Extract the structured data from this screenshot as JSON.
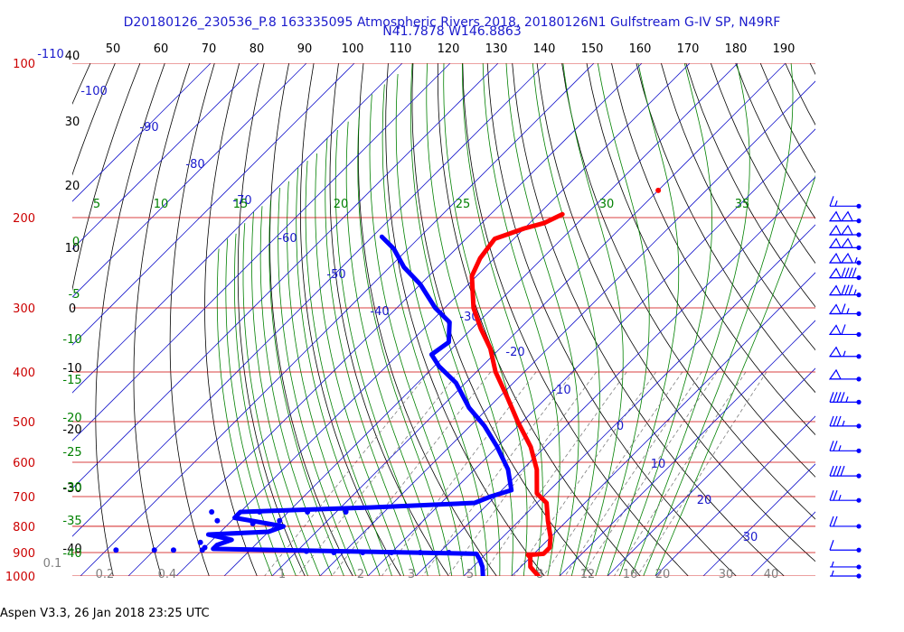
{
  "chart_data": {
    "type": "skew-t log-p",
    "title": "D20180126_230536_P.8 163335095 Atmospheric Rivers 2018, 20180126N1 Gulfstream G-IV SP, N49RF",
    "subtitle": "N41.7878 W146.8863",
    "footer": "Aspen V3.3, 26 Jan 2018  23:25 UTC",
    "pressure_levels": [
      "100",
      "200",
      "300",
      "400",
      "500",
      "600",
      "700",
      "800",
      "900",
      "1000"
    ],
    "height_labels": [
      "40",
      "30",
      "20",
      "10",
      "0",
      "-10",
      "-20",
      "-30",
      "-40"
    ],
    "top_temperature_labels": [
      "50",
      "60",
      "70",
      "80",
      "90",
      "100",
      "110",
      "120",
      "130",
      "140",
      "150",
      "160",
      "170",
      "180",
      "190"
    ],
    "isotherm_labels": [
      "-110",
      "-100",
      "-90",
      "-80",
      "-70",
      "-60",
      "-50",
      "-40",
      "-30",
      "-20",
      "-10",
      "0",
      "10",
      "20",
      "30"
    ],
    "moist_adiabat_labels": [
      "5",
      "10",
      "15",
      "20",
      "25",
      "30",
      "35"
    ],
    "dry_adiabat_labels": [
      "0",
      "-5",
      "-10",
      "-15",
      "-20",
      "-25",
      "-30",
      "-35",
      "-40"
    ],
    "mixing_ratio_labels": [
      "0.1",
      "0.2",
      "0.4",
      "1",
      "2",
      "3",
      "5",
      "8",
      "12",
      "16",
      "20",
      "30",
      "40"
    ],
    "colors": {
      "temperature": "#ff0000",
      "dewpoint": "#0000ff",
      "isobar": "#cc0000",
      "isotherm": "#1a1acc",
      "dry_adiabat": "#000000",
      "moist_adiabat": "#008000",
      "mixing_ratio": "#7f7f7f"
    },
    "temperature_profile": [
      {
        "p": 197,
        "t": -55
      },
      {
        "p": 205,
        "t": -57
      },
      {
        "p": 210,
        "t": -60
      },
      {
        "p": 220,
        "t": -64
      },
      {
        "p": 240,
        "t": -63
      },
      {
        "p": 260,
        "t": -61
      },
      {
        "p": 300,
        "t": -54
      },
      {
        "p": 330,
        "t": -48
      },
      {
        "p": 360,
        "t": -42
      },
      {
        "p": 400,
        "t": -36
      },
      {
        "p": 450,
        "t": -28
      },
      {
        "p": 500,
        "t": -21
      },
      {
        "p": 560,
        "t": -13
      },
      {
        "p": 620,
        "t": -7
      },
      {
        "p": 690,
        "t": -2
      },
      {
        "p": 720,
        "t": 2
      },
      {
        "p": 780,
        "t": 6
      },
      {
        "p": 840,
        "t": 10
      },
      {
        "p": 880,
        "t": 12
      },
      {
        "p": 905,
        "t": 12
      },
      {
        "p": 910,
        "t": 9
      },
      {
        "p": 920,
        "t": 10
      },
      {
        "p": 960,
        "t": 12
      },
      {
        "p": 1005,
        "t": 16
      }
    ],
    "dewpoint_profile": [
      {
        "p": 218,
        "t": -88
      },
      {
        "p": 230,
        "t": -83
      },
      {
        "p": 250,
        "t": -77
      },
      {
        "p": 270,
        "t": -70
      },
      {
        "p": 300,
        "t": -62
      },
      {
        "p": 320,
        "t": -56
      },
      {
        "p": 350,
        "t": -52
      },
      {
        "p": 370,
        "t": -53
      },
      {
        "p": 390,
        "t": -49
      },
      {
        "p": 420,
        "t": -42
      },
      {
        "p": 470,
        "t": -34
      },
      {
        "p": 510,
        "t": -27
      },
      {
        "p": 560,
        "t": -20
      },
      {
        "p": 620,
        "t": -13
      },
      {
        "p": 680,
        "t": -8
      },
      {
        "p": 700,
        "t": -11
      },
      {
        "p": 720,
        "t": -13
      },
      {
        "p": 735,
        "t": -34
      },
      {
        "p": 750,
        "t": -60
      },
      {
        "p": 770,
        "t": -60
      },
      {
        "p": 800,
        "t": -48
      },
      {
        "p": 820,
        "t": -50
      },
      {
        "p": 830,
        "t": -62
      },
      {
        "p": 850,
        "t": -56
      },
      {
        "p": 870,
        "t": -58
      },
      {
        "p": 885,
        "t": -58
      },
      {
        "p": 905,
        "t": -2
      },
      {
        "p": 930,
        "t": 0
      },
      {
        "p": 960,
        "t": 2
      },
      {
        "p": 1000,
        "t": 4
      }
    ],
    "dewpoint_scatter": [
      {
        "p": 750,
        "t": -66
      },
      {
        "p": 750,
        "t": -56
      },
      {
        "p": 750,
        "t": -46
      },
      {
        "p": 750,
        "t": -38
      },
      {
        "p": 780,
        "t": -63
      },
      {
        "p": 780,
        "t": -50
      },
      {
        "p": 790,
        "t": -55
      },
      {
        "p": 860,
        "t": -62
      },
      {
        "p": 880,
        "t": -60
      },
      {
        "p": 890,
        "t": -78
      },
      {
        "p": 890,
        "t": -70
      },
      {
        "p": 890,
        "t": -66
      },
      {
        "p": 890,
        "t": -60
      },
      {
        "p": 895,
        "t": -38
      },
      {
        "p": 900,
        "t": -32
      },
      {
        "p": 900,
        "t": -26
      },
      {
        "p": 900,
        "t": -20
      },
      {
        "p": 900,
        "t": -14
      },
      {
        "p": 900,
        "t": -8
      }
    ],
    "isolated_temperature_point": {
      "p": 177,
      "t": -40
    },
    "wind_barbs": [
      {
        "p": 190,
        "speed_kt": 15
      },
      {
        "p": 203,
        "speed_kt": 100
      },
      {
        "p": 216,
        "speed_kt": 100
      },
      {
        "p": 229,
        "speed_kt": 100
      },
      {
        "p": 245,
        "speed_kt": 105
      },
      {
        "p": 262,
        "speed_kt": 90
      },
      {
        "p": 283,
        "speed_kt": 85
      },
      {
        "p": 308,
        "speed_kt": 65
      },
      {
        "p": 338,
        "speed_kt": 60
      },
      {
        "p": 373,
        "speed_kt": 55
      },
      {
        "p": 413,
        "speed_kt": 50
      },
      {
        "p": 458,
        "speed_kt": 45
      },
      {
        "p": 510,
        "speed_kt": 35
      },
      {
        "p": 570,
        "speed_kt": 25
      },
      {
        "p": 638,
        "speed_kt": 40
      },
      {
        "p": 712,
        "speed_kt": 25
      },
      {
        "p": 800,
        "speed_kt": 20
      },
      {
        "p": 890,
        "speed_kt": 10
      },
      {
        "p": 960,
        "speed_kt": 5
      },
      {
        "p": 1000,
        "speed_kt": 5
      }
    ]
  }
}
